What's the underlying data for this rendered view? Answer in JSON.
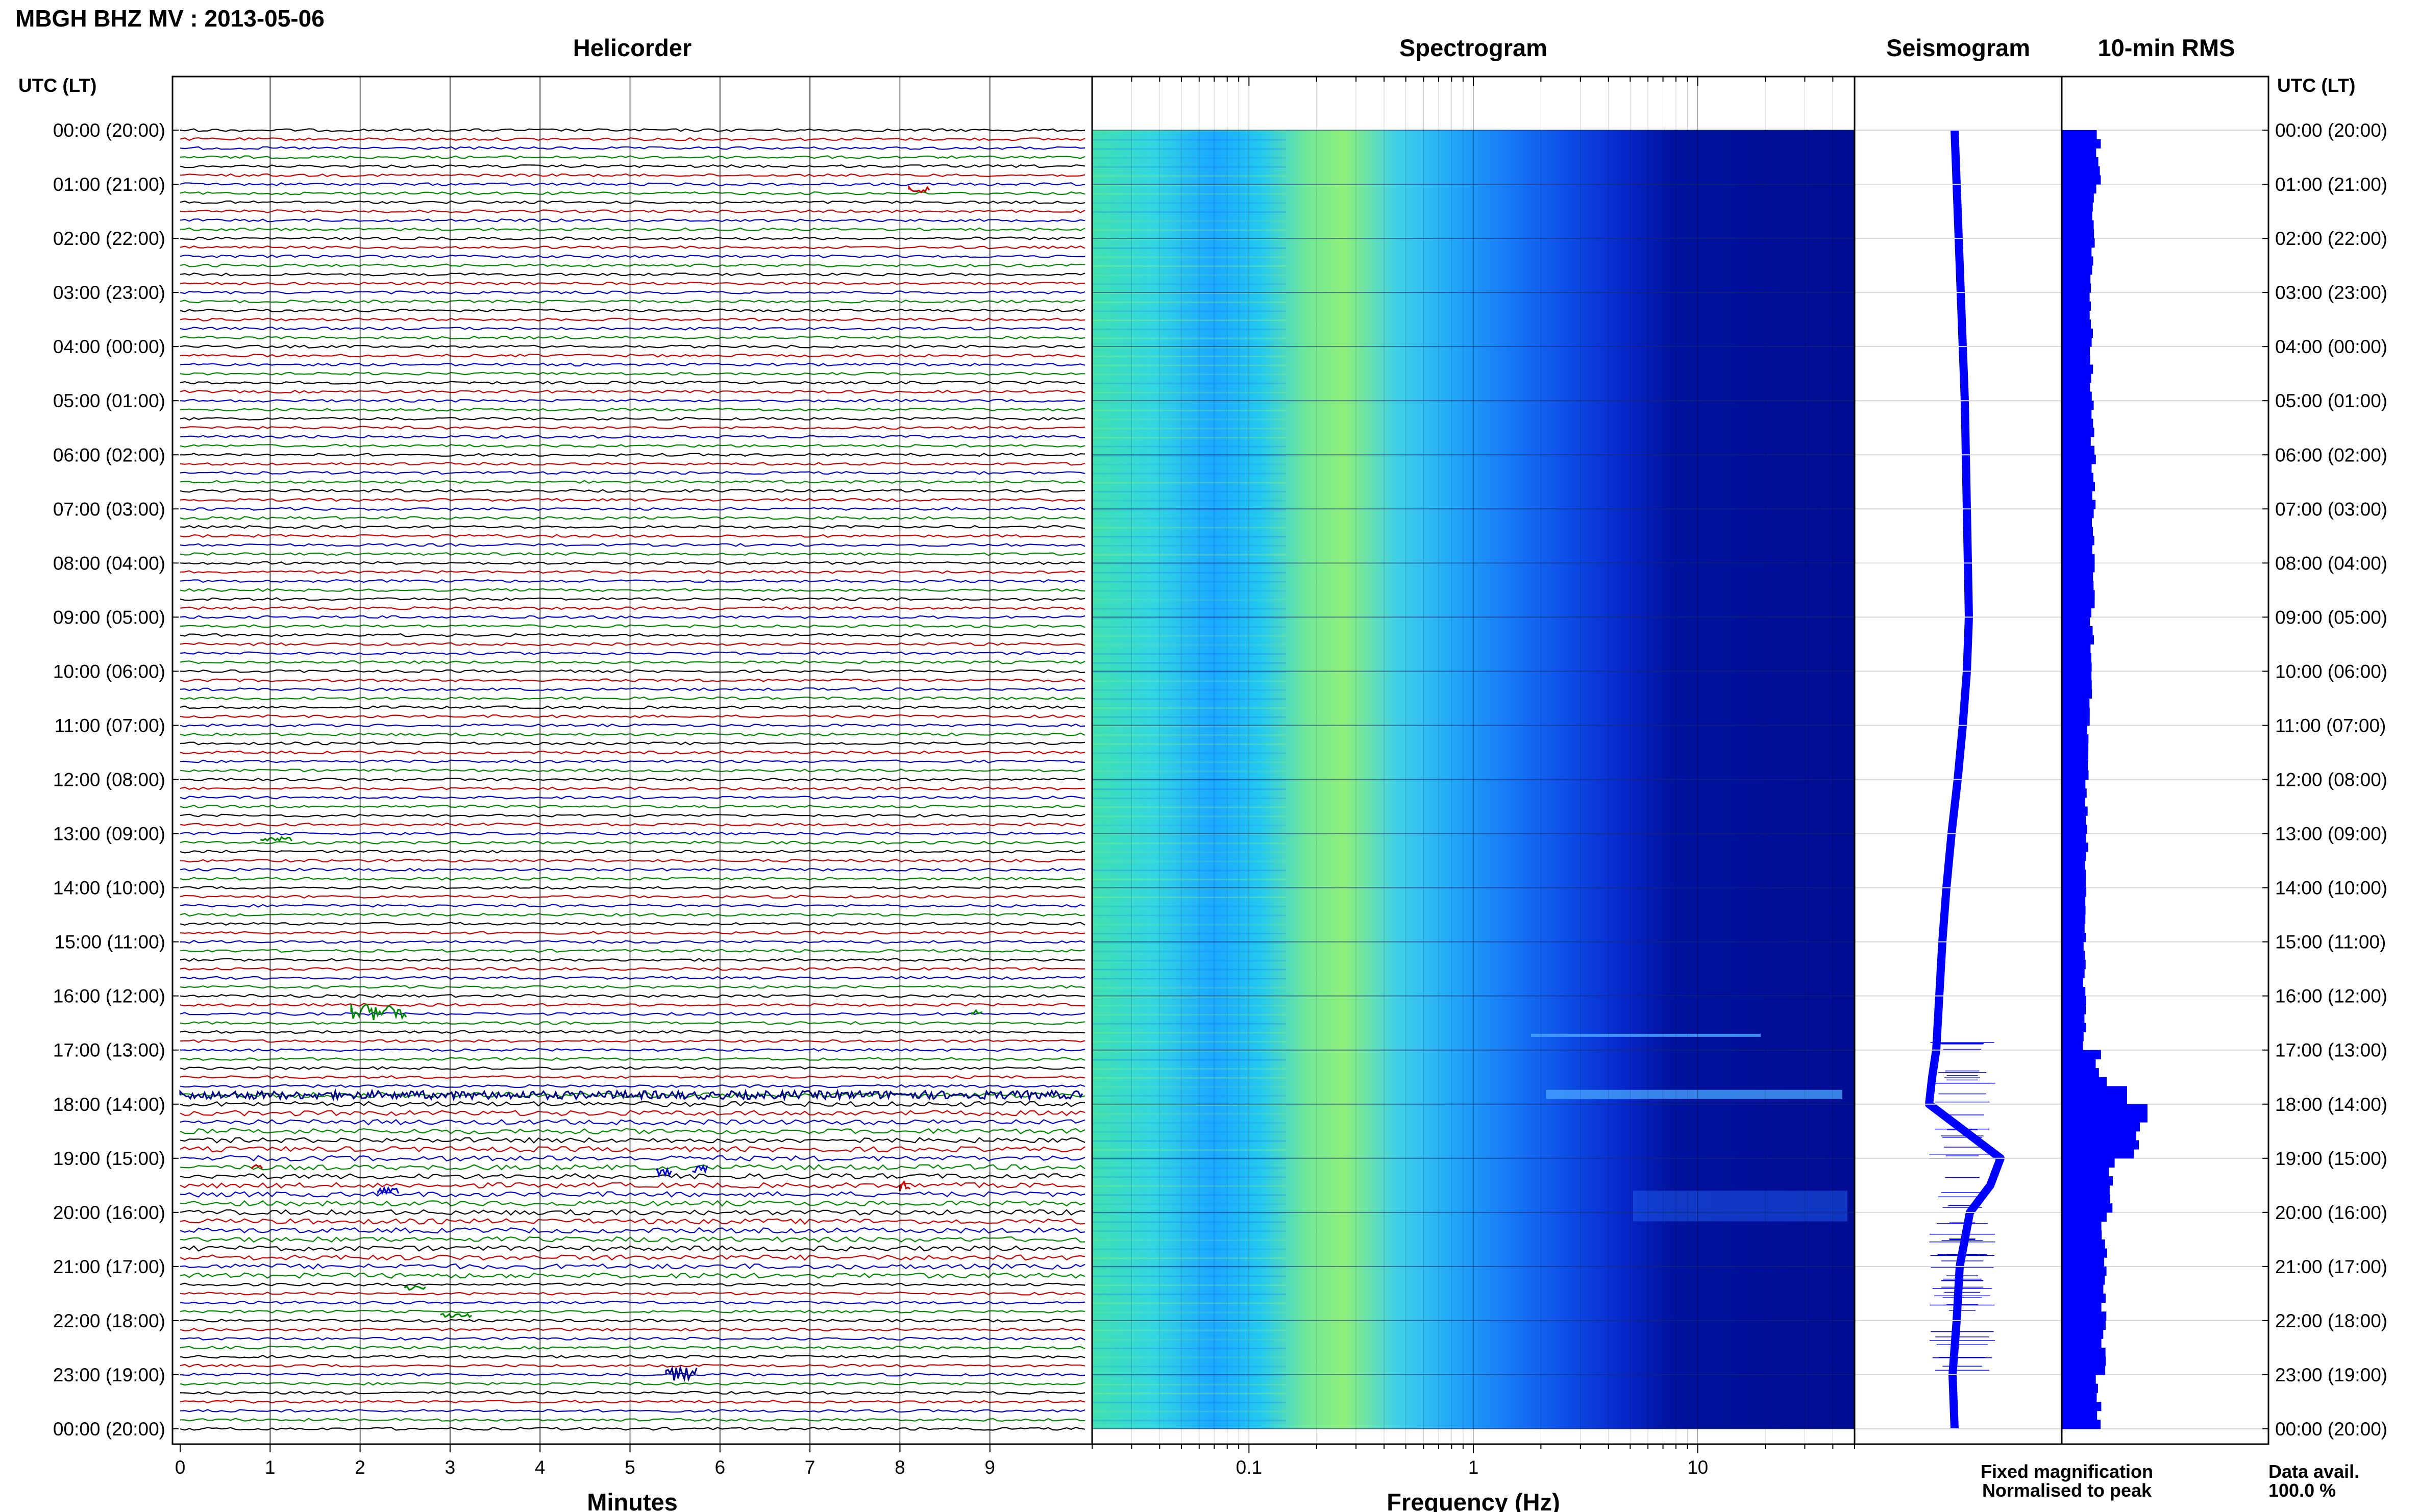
{
  "figure_title": "MBGH BHZ MV : 2013-05-06",
  "left_axis_header": "UTC (LT)",
  "right_axis_header": "UTC (LT)",
  "legend": {
    "fixed": "Fixed magnification",
    "normalised": "Normalised to peak",
    "fixed_color": "#0000ff",
    "normalised_color": "#ff0000"
  },
  "data_avail": {
    "label": "Data avail.",
    "value": "100.0 %"
  },
  "chart_data": [
    {
      "type": "line",
      "title": "Helicorder",
      "xlabel": "Minutes",
      "x_ticks": [
        "0",
        "1",
        "2",
        "3",
        "4",
        "5",
        "6",
        "7",
        "8",
        "9"
      ],
      "xlim": [
        0,
        10
      ],
      "y_tick_labels": [
        "00:00 (20:00)",
        "01:00 (21:00)",
        "02:00 (22:00)",
        "03:00 (23:00)",
        "04:00 (00:00)",
        "05:00 (01:00)",
        "06:00 (02:00)",
        "07:00 (03:00)",
        "08:00 (04:00)",
        "09:00 (05:00)",
        "10:00 (06:00)",
        "11:00 (07:00)",
        "12:00 (08:00)",
        "13:00 (09:00)",
        "14:00 (10:00)",
        "15:00 (11:00)",
        "16:00 (12:00)",
        "17:00 (13:00)",
        "18:00 (14:00)",
        "19:00 (15:00)",
        "20:00 (16:00)",
        "21:00 (17:00)",
        "22:00 (18:00)",
        "23:00 (19:00)",
        "00:00 (20:00)"
      ],
      "rows_per_hour": 6,
      "trace_colors": [
        "#000000",
        "#cc0000",
        "#0000cc",
        "#008800"
      ],
      "grid": true
    },
    {
      "type": "heatmap",
      "title": "Spectrogram",
      "xlabel": "Frequency (Hz)",
      "x_scale": "log",
      "x_ticks": [
        "0.1",
        "1",
        "10"
      ],
      "xlim": [
        0.02,
        50
      ],
      "colormap": [
        "#00007f",
        "#0000ff",
        "#0080ff",
        "#00ffff",
        "#80ff80",
        "#ffff00"
      ]
    },
    {
      "type": "line",
      "title": "Seismogram",
      "line_color": "#0000ff",
      "x_time_hours": [
        0,
        1,
        2,
        3,
        4,
        5,
        6,
        7,
        8,
        9,
        10,
        11,
        12,
        13,
        14,
        15,
        16,
        17,
        17.5,
        18,
        18.5,
        19,
        19.5,
        20,
        21,
        22,
        23,
        24
      ],
      "values": [
        0,
        0.2,
        0.4,
        0.6,
        0.8,
        1,
        1.1,
        1.2,
        1.3,
        1.4,
        1.2,
        0.8,
        0.3,
        -0.3,
        -0.8,
        -1.2,
        -1.5,
        -1.8,
        -2.2,
        -2.5,
        1.0,
        4.5,
        3.5,
        1.5,
        0.5,
        0.2,
        -0.2,
        0
      ]
    },
    {
      "type": "bar",
      "title": "10-min RMS",
      "bar_color": "#0000ff",
      "orientation": "horizontal",
      "bins_per_hour": 6,
      "hourly_values": [
        0.9,
        0.8,
        0.75,
        0.72,
        0.72,
        0.75,
        0.78,
        0.78,
        0.76,
        0.75,
        0.7,
        0.66,
        0.62,
        0.6,
        0.58,
        0.56,
        0.56,
        0.9,
        1.8,
        1.25,
        1.05,
        1.05,
        1.0,
        0.9
      ]
    }
  ]
}
